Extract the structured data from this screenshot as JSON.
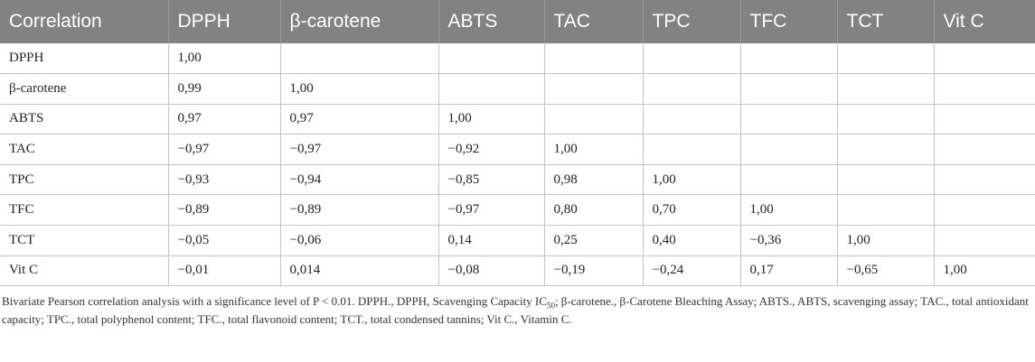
{
  "table": {
    "headers": [
      "Correlation",
      "DPPH",
      "β-carotene",
      "ABTS",
      "TAC",
      "TPC",
      "TFC",
      "TCT",
      "Vit C"
    ],
    "rows": [
      [
        "DPPH",
        "1,00",
        "",
        "",
        "",
        "",
        "",
        "",
        ""
      ],
      [
        "β-carotene",
        "0,99",
        "1,00",
        "",
        "",
        "",
        "",
        "",
        ""
      ],
      [
        "ABTS",
        "0,97",
        "0,97",
        "1,00",
        "",
        "",
        "",
        "",
        ""
      ],
      [
        "TAC",
        "−0,97",
        "−0,97",
        "−0,92",
        "1,00",
        "",
        "",
        "",
        ""
      ],
      [
        "TPC",
        "−0,93",
        "−0,94",
        "−0,85",
        "0,98",
        "1,00",
        "",
        "",
        ""
      ],
      [
        "TFC",
        "−0,89",
        "−0,89",
        "−0,97",
        "0,80",
        "0,70",
        "1,00",
        "",
        ""
      ],
      [
        "TCT",
        "−0,05",
        "−0,06",
        "0,14",
        "0,25",
        "0,40",
        "−0,36",
        "1,00",
        ""
      ],
      [
        "Vit C",
        "−0,01",
        "0,014",
        "−0,08",
        "−0,19",
        "−0,24",
        "0,17",
        "−0,65",
        "1,00"
      ]
    ]
  },
  "footnote": {
    "before_sub": "Bivariate Pearson correlation analysis with a significance level of P < 0.01. DPPH., DPPH, Scavenging Capacity IC",
    "sub": "50",
    "after_sub": "; β-carotene., β-Carotene Bleaching Assay; ABTS., ABTS, scavenging assay; TAC., total antioxidant capacity; TPC., total polyphenol content; TFC., total flavonoid content; TCT., total condensed tannins; Vit C., Vitamin C."
  },
  "colors": {
    "header_background": "#828282",
    "header_text": "#ffffff",
    "grid_line": "#c4c4c4"
  }
}
